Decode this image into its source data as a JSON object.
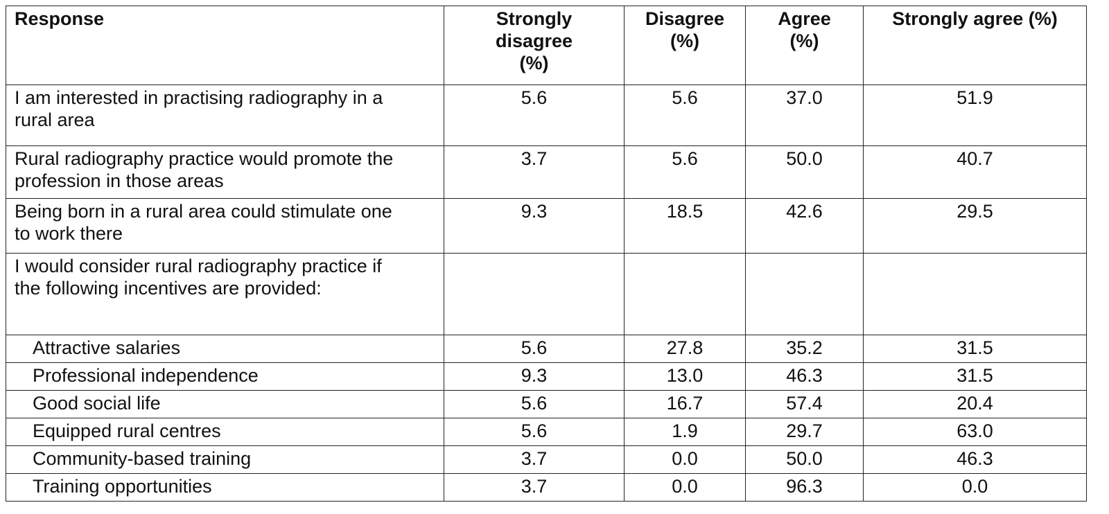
{
  "table": {
    "columns": [
      "Response",
      "Strongly disagree (%)",
      "Disagree (%)",
      "Agree (%)",
      "Strongly agree (%)"
    ],
    "rows": [
      {
        "response": "I am interested in practising radiography in a rural area",
        "values": [
          "5.6",
          "5.6",
          "37.0",
          "51.9"
        ]
      },
      {
        "response": "Rural radiography practice would promote the profession in those areas",
        "values": [
          "3.7",
          "5.6",
          "50.0",
          "40.7"
        ]
      },
      {
        "response": "Being born in a rural area could stimulate one to work there",
        "values": [
          "9.3",
          "18.5",
          "42.6",
          "29.5"
        ]
      },
      {
        "response": "I would consider rural radiography practice if the following incentives are provided:",
        "items": [
          {
            "response": "Attractive salaries",
            "values": [
              "5.6",
              "27.8",
              "35.2",
              "31.5"
            ]
          },
          {
            "response": "Professional independence",
            "values": [
              "9.3",
              "13.0",
              "46.3",
              "31.5"
            ]
          },
          {
            "response": "Good social life",
            "values": [
              "5.6",
              "16.7",
              "57.4",
              "20.4"
            ]
          },
          {
            "response": "Equipped rural centres",
            "values": [
              "5.6",
              "1.9",
              "29.7",
              "63.0"
            ]
          },
          {
            "response": "Community-based training",
            "values": [
              "3.7",
              "0.0",
              "50.0",
              "46.3"
            ]
          },
          {
            "response": "Training opportunities",
            "values": [
              "3.7",
              "0.0",
              "96.3",
              "0.0"
            ]
          }
        ]
      }
    ]
  }
}
